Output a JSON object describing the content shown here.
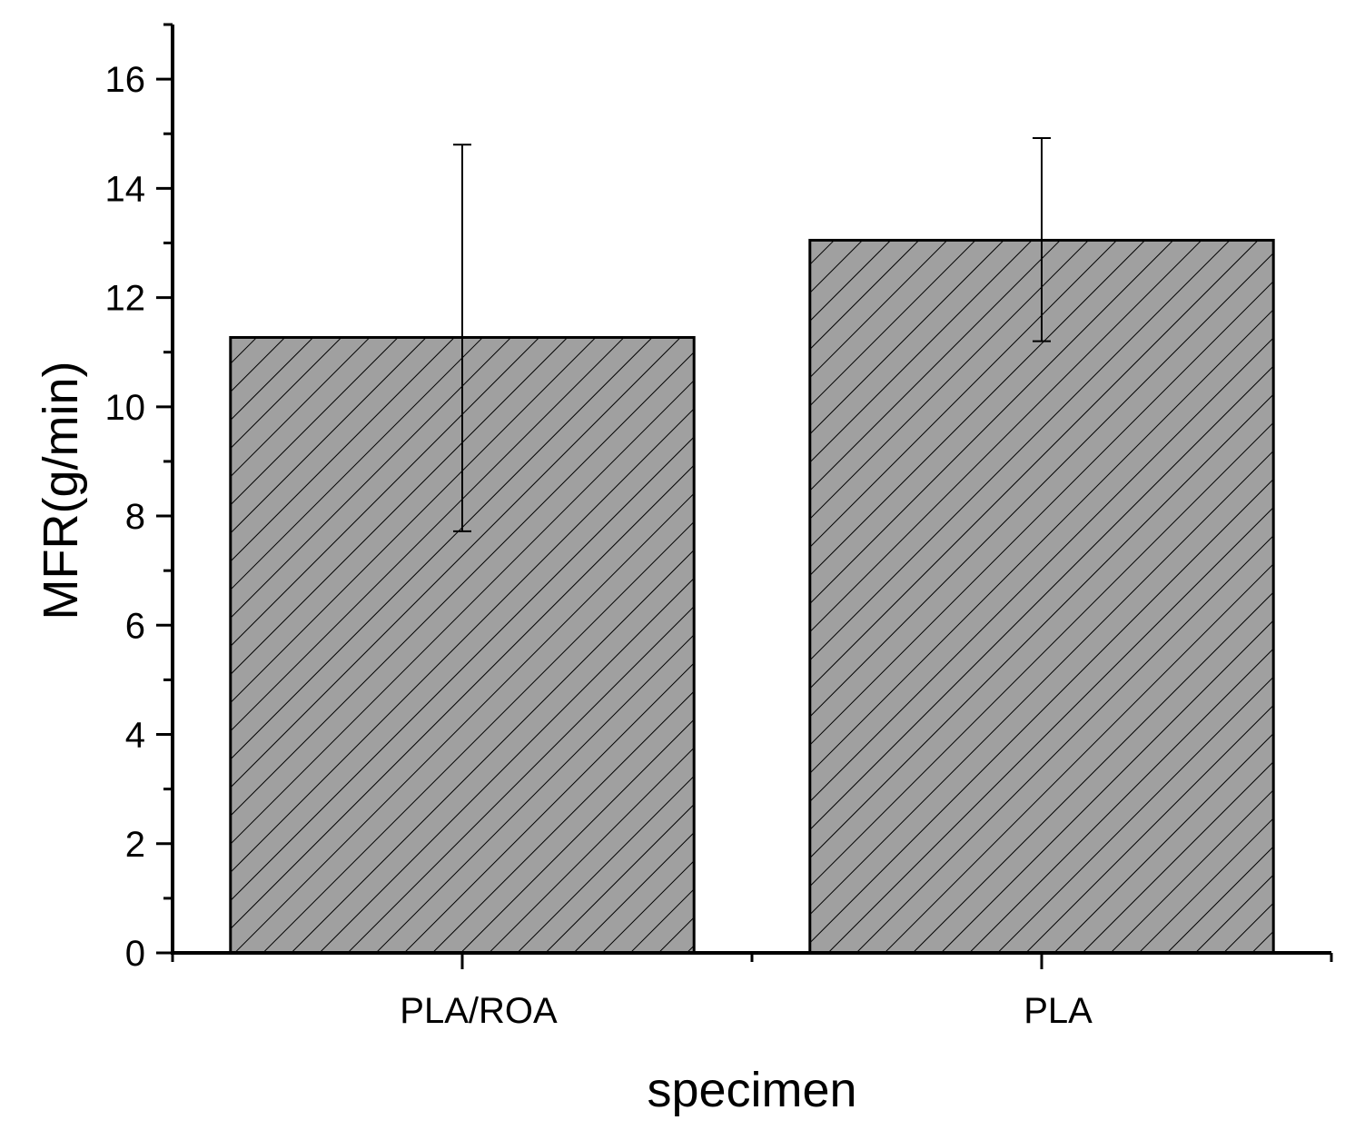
{
  "chart_data": {
    "type": "bar",
    "xlabel": "specimen",
    "ylabel": "MFR(g/min)",
    "categories": [
      "PLA/ROA",
      "PLA"
    ],
    "values": [
      11.27,
      13.05
    ],
    "error_low": [
      7.72,
      11.2
    ],
    "error_high": [
      14.8,
      14.92
    ],
    "ylim": [
      0,
      17
    ],
    "yticks": [
      "0",
      "2",
      "4",
      "6",
      "8",
      "10",
      "12",
      "14",
      "16"
    ],
    "bar_fill": "#a0a0a0",
    "bar_pattern": "diagonal-hatch",
    "bar_stroke": "#000000",
    "grid": false,
    "legend": "none"
  }
}
